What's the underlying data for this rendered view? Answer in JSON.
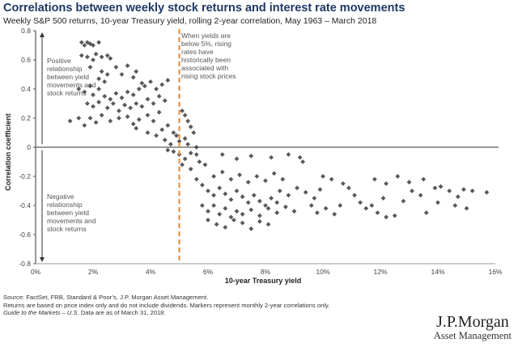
{
  "header": {
    "title": "Correlations between weekly stock returns and interest rate movements",
    "subtitle": "Weekly S&P 500 returns, 10-year Treasury yield, rolling 2-year correlation, May 1963 – March 2018"
  },
  "footer": {
    "source": "Source: FactSet, FRB, Standard & Poor’s, J.P. Morgan Asset Management.",
    "note": "Returns are based on price index only and do not include dividends. Markers represent monthly 2-year correlations only.",
    "guide_italic": "Guide to the Markets – U.S.",
    "guide_rest": " Data are as of March 31, 2018."
  },
  "brand": {
    "name": "J.P.Morgan",
    "tagline": "Asset Management"
  },
  "colors": {
    "marker": "#595959",
    "threshold_line": "#e8892b",
    "title": "#1f3864",
    "axis": "#333333"
  },
  "chart_data": {
    "type": "scatter",
    "xlabel": "10-year Treasury yield",
    "ylabel": "Correlation coefficient",
    "xlim": [
      0,
      16
    ],
    "ylim": [
      -0.8,
      0.8
    ],
    "x_ticks": [
      "0%",
      "2%",
      "4%",
      "6%",
      "8%",
      "10%",
      "12%",
      "14%",
      "16%"
    ],
    "y_ticks": [
      "0.8",
      "0.6",
      "0.4",
      "0.2",
      "0",
      "-0.2",
      "-0.4",
      "-0.6",
      "-0.8"
    ],
    "threshold_x": 5,
    "annotations": {
      "threshold": "When yields are below 5%, rising rates have historically been associated with rising stock prices",
      "positive": "Positive relationship between yield movements and stock returns",
      "negative": "Negative relationship between yield movements and stock returns"
    },
    "series": [
      {
        "marker": "diamond",
        "points": [
          [
            1.6,
            0.72
          ],
          [
            1.7,
            0.7
          ],
          [
            1.8,
            0.72
          ],
          [
            1.9,
            0.71
          ],
          [
            2.0,
            0.7
          ],
          [
            2.2,
            0.72
          ],
          [
            1.6,
            0.63
          ],
          [
            1.8,
            0.62
          ],
          [
            2.0,
            0.6
          ],
          [
            2.1,
            0.64
          ],
          [
            2.3,
            0.62
          ],
          [
            2.5,
            0.63
          ],
          [
            2.6,
            0.61
          ],
          [
            1.9,
            0.55
          ],
          [
            2.3,
            0.52
          ],
          [
            2.5,
            0.5
          ],
          [
            2.8,
            0.55
          ],
          [
            2.2,
            0.47
          ],
          [
            2.4,
            0.45
          ],
          [
            3.0,
            0.5
          ],
          [
            3.4,
            0.48
          ],
          [
            3.7,
            0.44
          ],
          [
            3.2,
            0.56
          ],
          [
            3.5,
            0.52
          ],
          [
            1.5,
            0.4
          ],
          [
            1.7,
            0.38
          ],
          [
            1.9,
            0.42
          ],
          [
            2.0,
            0.36
          ],
          [
            2.2,
            0.4
          ],
          [
            2.4,
            0.35
          ],
          [
            2.6,
            0.33
          ],
          [
            2.8,
            0.37
          ],
          [
            3.0,
            0.34
          ],
          [
            3.2,
            0.38
          ],
          [
            3.4,
            0.36
          ],
          [
            3.6,
            0.4
          ],
          [
            3.8,
            0.42
          ],
          [
            4.0,
            0.45
          ],
          [
            4.2,
            0.4
          ],
          [
            4.4,
            0.43
          ],
          [
            4.6,
            0.46
          ],
          [
            1.8,
            0.3
          ],
          [
            2.0,
            0.28
          ],
          [
            2.2,
            0.31
          ],
          [
            2.5,
            0.27
          ],
          [
            2.7,
            0.3
          ],
          [
            2.9,
            0.25
          ],
          [
            3.1,
            0.29
          ],
          [
            3.3,
            0.27
          ],
          [
            3.5,
            0.3
          ],
          [
            3.7,
            0.28
          ],
          [
            3.9,
            0.33
          ],
          [
            4.1,
            0.3
          ],
          [
            4.3,
            0.35
          ],
          [
            4.5,
            0.32
          ],
          [
            1.2,
            0.18
          ],
          [
            1.5,
            0.2
          ],
          [
            1.7,
            0.15
          ],
          [
            1.9,
            0.2
          ],
          [
            2.1,
            0.17
          ],
          [
            2.3,
            0.22
          ],
          [
            2.6,
            0.18
          ],
          [
            2.9,
            0.2
          ],
          [
            3.2,
            0.21
          ],
          [
            3.4,
            0.16
          ],
          [
            3.6,
            0.19
          ],
          [
            3.9,
            0.22
          ],
          [
            4.1,
            0.18
          ],
          [
            4.3,
            0.24
          ],
          [
            4.4,
            0.12
          ],
          [
            4.6,
            0.15
          ],
          [
            4.2,
            0.08
          ],
          [
            3.5,
            0.13
          ],
          [
            3.9,
            0.1
          ],
          [
            4.8,
            0.1
          ],
          [
            4.5,
            0.05
          ],
          [
            4.7,
            0.02
          ],
          [
            4.9,
            0.08
          ],
          [
            5.0,
            0.04
          ],
          [
            5.2,
            0.06
          ],
          [
            5.1,
            0.25
          ],
          [
            5.2,
            0.22
          ],
          [
            5.3,
            0.18
          ],
          [
            5.4,
            0.14
          ],
          [
            5.5,
            0.1
          ],
          [
            5.3,
            0.02
          ],
          [
            5.6,
            0.0
          ],
          [
            4.6,
            -0.02
          ],
          [
            4.8,
            -0.03
          ],
          [
            5.0,
            -0.05
          ],
          [
            5.2,
            -0.08
          ],
          [
            5.4,
            -0.04
          ],
          [
            5.1,
            -0.12
          ],
          [
            5.4,
            -0.15
          ],
          [
            5.7,
            -0.1
          ],
          [
            5.9,
            -0.12
          ],
          [
            5.6,
            -0.05
          ],
          [
            5.6,
            -0.22
          ],
          [
            5.8,
            -0.26
          ],
          [
            6.0,
            -0.3
          ],
          [
            6.2,
            -0.33
          ],
          [
            6.4,
            -0.28
          ],
          [
            6.6,
            -0.32
          ],
          [
            6.8,
            -0.36
          ],
          [
            7.0,
            -0.3
          ],
          [
            7.2,
            -0.34
          ],
          [
            7.4,
            -0.38
          ],
          [
            7.6,
            -0.33
          ],
          [
            7.8,
            -0.37
          ],
          [
            8.0,
            -0.4
          ],
          [
            8.2,
            -0.35
          ],
          [
            8.4,
            -0.38
          ],
          [
            5.8,
            -0.4
          ],
          [
            6.0,
            -0.44
          ],
          [
            6.2,
            -0.4
          ],
          [
            6.4,
            -0.46
          ],
          [
            6.6,
            -0.42
          ],
          [
            6.8,
            -0.48
          ],
          [
            7.0,
            -0.44
          ],
          [
            7.2,
            -0.46
          ],
          [
            7.5,
            -0.43
          ],
          [
            7.8,
            -0.47
          ],
          [
            8.1,
            -0.42
          ],
          [
            8.4,
            -0.45
          ],
          [
            8.7,
            -0.41
          ],
          [
            9.0,
            -0.44
          ],
          [
            6.0,
            -0.5
          ],
          [
            6.3,
            -0.53
          ],
          [
            6.6,
            -0.55
          ],
          [
            6.9,
            -0.5
          ],
          [
            7.2,
            -0.52
          ],
          [
            7.5,
            -0.56
          ],
          [
            7.8,
            -0.51
          ],
          [
            8.1,
            -0.53
          ],
          [
            6.2,
            -0.2
          ],
          [
            6.5,
            -0.17
          ],
          [
            6.8,
            -0.22
          ],
          [
            7.1,
            -0.19
          ],
          [
            7.4,
            -0.24
          ],
          [
            7.7,
            -0.2
          ],
          [
            8.0,
            -0.23
          ],
          [
            8.3,
            -0.18
          ],
          [
            8.6,
            -0.22
          ],
          [
            6.5,
            -0.05
          ],
          [
            7.0,
            -0.08
          ],
          [
            7.5,
            -0.06
          ],
          [
            8.2,
            -0.07
          ],
          [
            8.8,
            -0.05
          ],
          [
            9.2,
            -0.07
          ],
          [
            9.3,
            -0.1
          ],
          [
            8.5,
            -0.3
          ],
          [
            8.8,
            -0.33
          ],
          [
            9.1,
            -0.28
          ],
          [
            9.4,
            -0.31
          ],
          [
            9.7,
            -0.35
          ],
          [
            9.9,
            -0.29
          ],
          [
            9.6,
            -0.4
          ],
          [
            9.8,
            -0.45
          ],
          [
            10.1,
            -0.42
          ],
          [
            10.4,
            -0.46
          ],
          [
            10.6,
            -0.4
          ],
          [
            10.0,
            -0.2
          ],
          [
            10.3,
            -0.22
          ],
          [
            10.7,
            -0.25
          ],
          [
            10.9,
            -0.28
          ],
          [
            11.1,
            -0.33
          ],
          [
            11.3,
            -0.38
          ],
          [
            11.5,
            -0.42
          ],
          [
            11.7,
            -0.4
          ],
          [
            11.9,
            -0.45
          ],
          [
            12.2,
            -0.48
          ],
          [
            12.5,
            -0.47
          ],
          [
            12.1,
            -0.35
          ],
          [
            12.8,
            -0.37
          ],
          [
            13.1,
            -0.3
          ],
          [
            13.4,
            -0.33
          ],
          [
            11.8,
            -0.22
          ],
          [
            12.2,
            -0.25
          ],
          [
            12.6,
            -0.2
          ],
          [
            13.0,
            -0.24
          ],
          [
            13.5,
            -0.22
          ],
          [
            13.9,
            -0.28
          ],
          [
            14.1,
            -0.27
          ],
          [
            14.4,
            -0.3
          ],
          [
            14.7,
            -0.34
          ],
          [
            14.9,
            -0.29
          ],
          [
            15.2,
            -0.3
          ],
          [
            15.7,
            -0.31
          ],
          [
            13.6,
            -0.45
          ],
          [
            14.0,
            -0.38
          ],
          [
            14.6,
            -0.4
          ],
          [
            15.0,
            -0.42
          ]
        ]
      }
    ]
  }
}
